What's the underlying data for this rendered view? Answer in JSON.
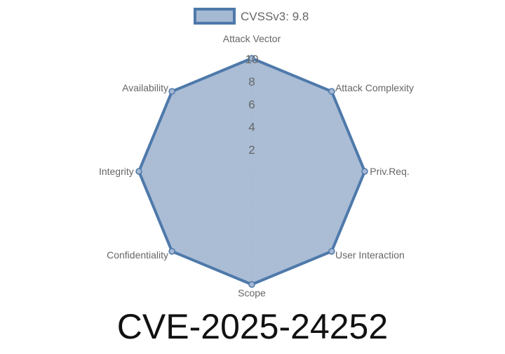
{
  "chart_data": {
    "type": "radar",
    "title": "CVE-2025-24252",
    "categories": [
      "Attack Vector",
      "Attack Complexity",
      "Priv.Req.",
      "User Interaction",
      "Scope",
      "Confidentiality",
      "Integrity",
      "Availability"
    ],
    "series": [
      {
        "name": "CVSSv3: 9.8",
        "values": [
          10,
          10,
          10,
          10,
          10,
          10,
          10,
          10
        ]
      }
    ],
    "rlim": [
      0,
      10
    ],
    "ticks": [
      "2",
      "4",
      "6",
      "8",
      "10"
    ],
    "tick_values": [
      2,
      4,
      6,
      8,
      10
    ],
    "grid": true,
    "legend": "top",
    "colors": {
      "fill": "#a5b9d3",
      "stroke": "#4e79aa",
      "grid": "#d0d0d0"
    }
  }
}
